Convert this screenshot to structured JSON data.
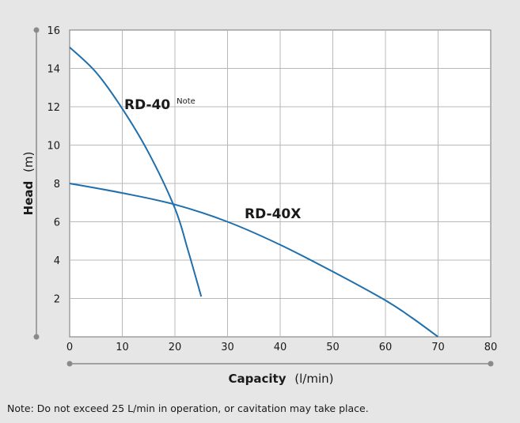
{
  "chart_data": {
    "type": "line",
    "xlabel": "Capacity",
    "xunit": "(l/min)",
    "ylabel": "Head",
    "yunit": "(m)",
    "xlim": [
      0,
      80
    ],
    "ylim": [
      0,
      16
    ],
    "xticks": [
      0,
      10,
      20,
      30,
      40,
      50,
      60,
      70,
      80
    ],
    "yticks": [
      2,
      4,
      6,
      8,
      10,
      12,
      14,
      16
    ],
    "grid": true,
    "line_color": "#1f6fad",
    "series": [
      {
        "name": "RD-40",
        "name_sup": "Note",
        "x": [
          0,
          5,
          10,
          15,
          20,
          22.5,
          25
        ],
        "y": [
          15.1,
          13.8,
          11.9,
          9.6,
          6.7,
          4.5,
          2.1
        ]
      },
      {
        "name": "RD-40X",
        "name_sup": "",
        "x": [
          0,
          10,
          20,
          30,
          40,
          50,
          60,
          65,
          70
        ],
        "y": [
          8.0,
          7.5,
          6.9,
          6.0,
          4.8,
          3.4,
          1.9,
          1.0,
          0.0
        ]
      }
    ]
  },
  "footnote": "Note: Do not exceed 25 L/min in operation, or cavitation may take place."
}
